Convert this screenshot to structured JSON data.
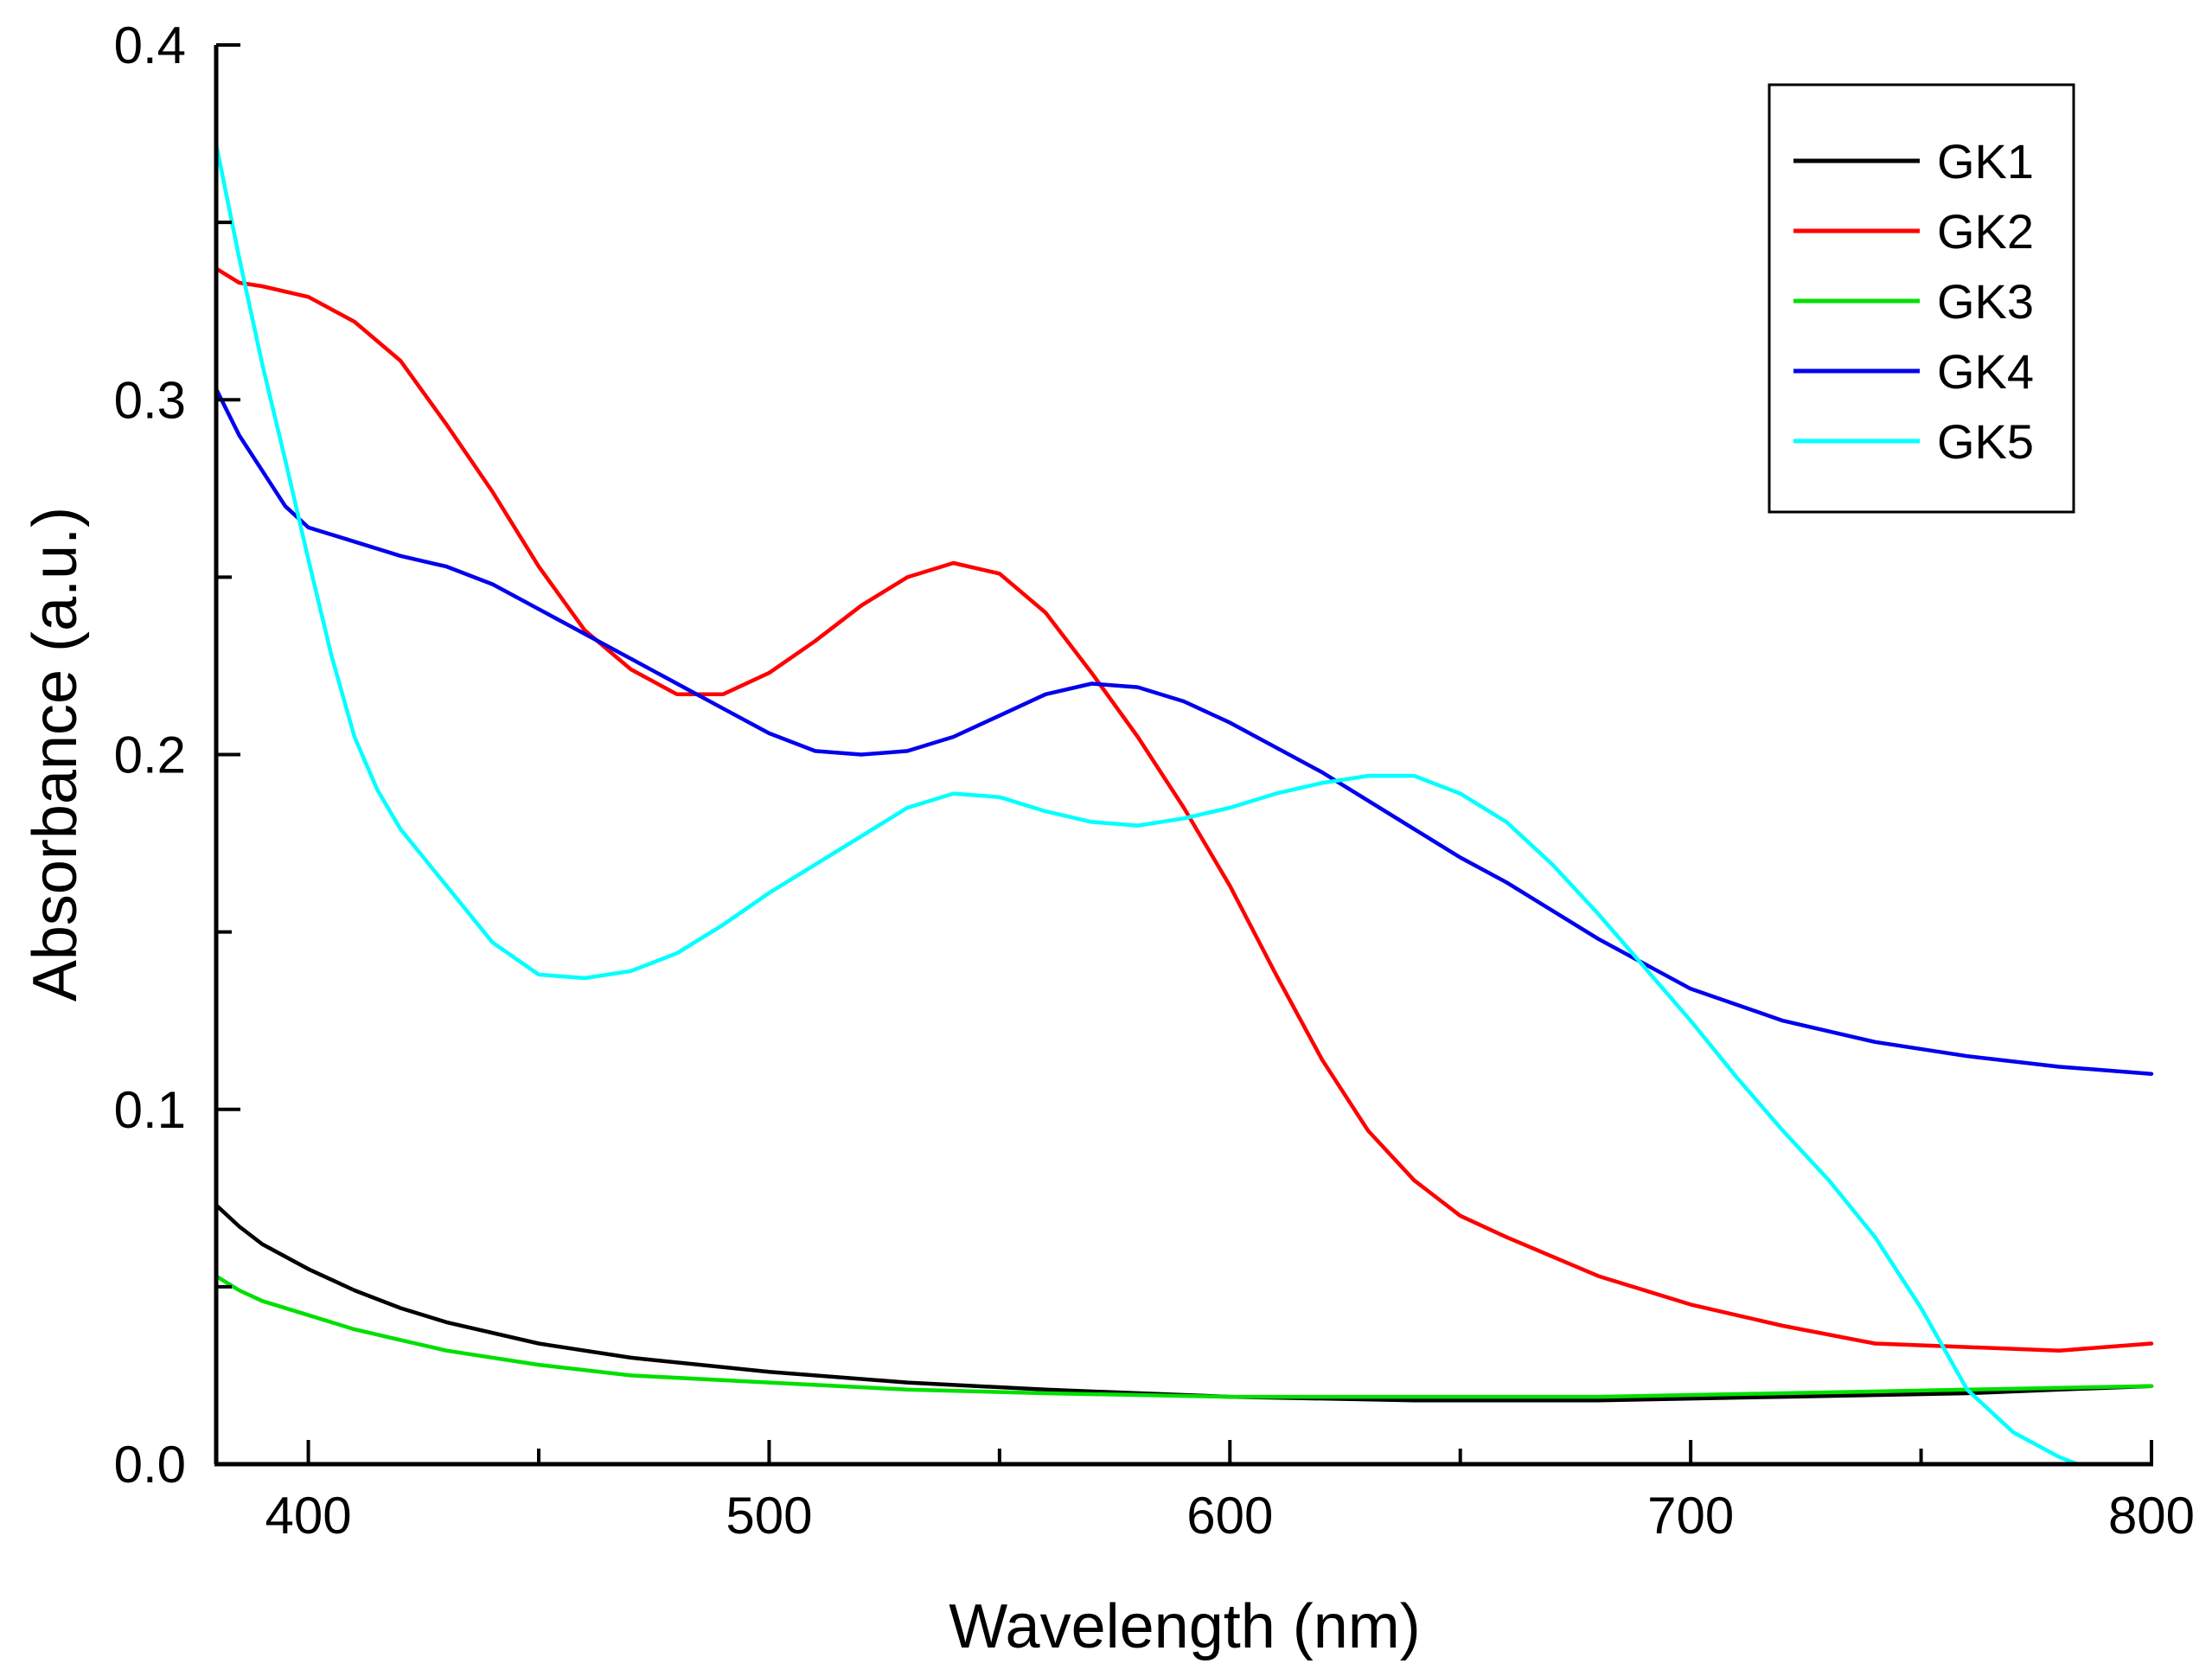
{
  "chart_data": {
    "type": "line",
    "title": "",
    "xlabel": "Wavelength (nm)",
    "ylabel": "Absorbance (a.u.)",
    "xlim": [
      380,
      800
    ],
    "ylim": [
      0.0,
      0.4
    ],
    "x_ticks": [
      400,
      500,
      600,
      700,
      800
    ],
    "x_tick_labels": [
      "400",
      "500",
      "600",
      "700",
      "800"
    ],
    "y_ticks": [
      0.0,
      0.1,
      0.2,
      0.3,
      0.4
    ],
    "y_tick_labels": [
      "0.0",
      "0.1",
      "0.2",
      "0.3",
      "0.4"
    ],
    "legend_position": "top-right",
    "grid": false,
    "series": [
      {
        "name": "GK1",
        "color": "#000000",
        "x": [
          380,
          385,
          390,
          400,
          410,
          420,
          430,
          450,
          470,
          500,
          530,
          560,
          600,
          640,
          680,
          720,
          760,
          780,
          800
        ],
        "y": [
          0.073,
          0.067,
          0.062,
          0.055,
          0.049,
          0.044,
          0.04,
          0.034,
          0.03,
          0.026,
          0.023,
          0.021,
          0.019,
          0.018,
          0.018,
          0.019,
          0.02,
          0.021,
          0.022
        ]
      },
      {
        "name": "GK2",
        "color": "#ff0000",
        "x": [
          380,
          385,
          390,
          400,
          410,
          420,
          430,
          440,
          450,
          460,
          470,
          480,
          490,
          500,
          510,
          520,
          530,
          540,
          550,
          560,
          570,
          580,
          590,
          600,
          610,
          620,
          630,
          640,
          650,
          660,
          680,
          700,
          720,
          740,
          760,
          780,
          800
        ],
        "y": [
          0.337,
          0.333,
          0.332,
          0.329,
          0.322,
          0.311,
          0.293,
          0.274,
          0.253,
          0.235,
          0.224,
          0.217,
          0.217,
          0.223,
          0.232,
          0.242,
          0.25,
          0.254,
          0.251,
          0.24,
          0.223,
          0.205,
          0.185,
          0.163,
          0.138,
          0.114,
          0.094,
          0.08,
          0.07,
          0.064,
          0.053,
          0.045,
          0.039,
          0.034,
          0.033,
          0.032,
          0.034
        ]
      },
      {
        "name": "GK3",
        "color": "#00e000",
        "x": [
          380,
          385,
          390,
          400,
          410,
          420,
          430,
          450,
          470,
          500,
          530,
          560,
          600,
          640,
          680,
          720,
          760,
          800
        ],
        "y": [
          0.053,
          0.049,
          0.046,
          0.042,
          0.038,
          0.035,
          0.032,
          0.028,
          0.025,
          0.023,
          0.021,
          0.02,
          0.019,
          0.019,
          0.019,
          0.02,
          0.021,
          0.022
        ]
      },
      {
        "name": "GK4",
        "color": "#0000ee",
        "x": [
          380,
          385,
          390,
          395,
          400,
          410,
          420,
          430,
          440,
          450,
          460,
          470,
          480,
          490,
          500,
          510,
          520,
          530,
          540,
          550,
          560,
          570,
          580,
          590,
          600,
          610,
          620,
          630,
          640,
          650,
          660,
          680,
          700,
          720,
          740,
          760,
          780,
          800
        ],
        "y": [
          0.303,
          0.29,
          0.28,
          0.27,
          0.264,
          0.26,
          0.256,
          0.253,
          0.248,
          0.241,
          0.234,
          0.227,
          0.22,
          0.213,
          0.206,
          0.201,
          0.2,
          0.201,
          0.205,
          0.211,
          0.217,
          0.22,
          0.219,
          0.215,
          0.209,
          0.202,
          0.195,
          0.187,
          0.179,
          0.171,
          0.164,
          0.148,
          0.134,
          0.125,
          0.119,
          0.115,
          0.112,
          0.11
        ]
      },
      {
        "name": "GK5",
        "color": "#00ffff",
        "x": [
          380,
          385,
          390,
          395,
          400,
          405,
          410,
          415,
          420,
          430,
          440,
          450,
          460,
          470,
          480,
          490,
          500,
          510,
          520,
          530,
          540,
          550,
          560,
          570,
          580,
          590,
          600,
          610,
          620,
          630,
          640,
          650,
          660,
          670,
          680,
          690,
          700,
          710,
          720,
          730,
          740,
          750,
          760,
          770,
          780,
          784
        ],
        "y": [
          0.372,
          0.34,
          0.31,
          0.283,
          0.255,
          0.228,
          0.205,
          0.19,
          0.179,
          0.163,
          0.147,
          0.138,
          0.137,
          0.139,
          0.144,
          0.152,
          0.161,
          0.169,
          0.177,
          0.185,
          0.189,
          0.188,
          0.184,
          0.181,
          0.18,
          0.182,
          0.185,
          0.189,
          0.192,
          0.194,
          0.194,
          0.189,
          0.181,
          0.169,
          0.155,
          0.14,
          0.125,
          0.109,
          0.094,
          0.08,
          0.064,
          0.044,
          0.021,
          0.009,
          0.002,
          0.0
        ]
      }
    ]
  }
}
